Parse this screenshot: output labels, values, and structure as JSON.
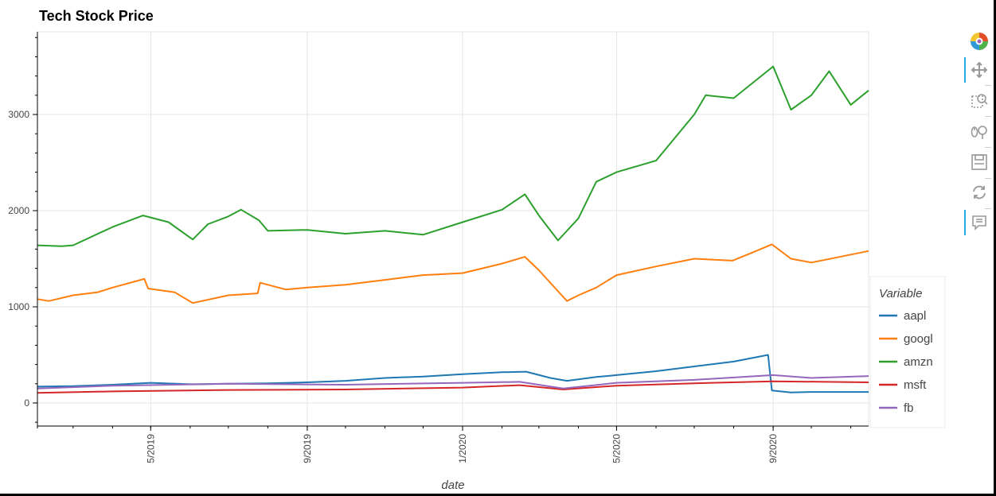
{
  "chart_data": {
    "type": "line",
    "title": "Tech Stock Price",
    "xlabel": "date",
    "ylabel": "",
    "x_range": [
      "2019-02-01",
      "2020-11-15"
    ],
    "ylim": [
      -240,
      3860
    ],
    "x_ticks": [
      {
        "date": "2019-05-01",
        "label": "5/2019"
      },
      {
        "date": "2019-09-01",
        "label": "9/2019"
      },
      {
        "date": "2020-01-01",
        "label": "1/2020"
      },
      {
        "date": "2020-05-01",
        "label": "5/2020"
      },
      {
        "date": "2020-09-01",
        "label": "9/2020"
      }
    ],
    "y_ticks": [
      0,
      1000,
      2000,
      3000
    ],
    "grid": true,
    "legend": {
      "title": "Variable",
      "position": "right"
    },
    "series": [
      {
        "name": "aapl",
        "color": "#1f77b4",
        "x": [
          "2019-02-01",
          "2019-03-01",
          "2019-04-01",
          "2019-05-01",
          "2019-06-01",
          "2019-07-01",
          "2019-08-01",
          "2019-09-01",
          "2019-10-01",
          "2019-11-01",
          "2019-12-01",
          "2020-01-01",
          "2020-02-01",
          "2020-02-20",
          "2020-03-10",
          "2020-03-23",
          "2020-04-15",
          "2020-05-01",
          "2020-06-01",
          "2020-07-01",
          "2020-08-01",
          "2020-08-28",
          "2020-08-31",
          "2020-09-15",
          "2020-10-01",
          "2020-11-15"
        ],
        "y": [
          170,
          175,
          190,
          210,
          195,
          200,
          205,
          215,
          230,
          260,
          275,
          300,
          320,
          325,
          260,
          230,
          270,
          290,
          330,
          380,
          430,
          500,
          130,
          110,
          115,
          115
        ]
      },
      {
        "name": "googl",
        "color": "#ff7f0e",
        "x": [
          "2019-02-01",
          "2019-02-10",
          "2019-03-01",
          "2019-03-20",
          "2019-04-01",
          "2019-04-26",
          "2019-04-29",
          "2019-05-20",
          "2019-06-03",
          "2019-07-01",
          "2019-07-24",
          "2019-07-26",
          "2019-08-15",
          "2019-09-01",
          "2019-10-01",
          "2019-11-01",
          "2019-12-01",
          "2020-01-01",
          "2020-02-01",
          "2020-02-19",
          "2020-03-01",
          "2020-03-23",
          "2020-04-01",
          "2020-04-15",
          "2020-05-01",
          "2020-06-01",
          "2020-07-01",
          "2020-07-31",
          "2020-08-15",
          "2020-08-31",
          "2020-09-15",
          "2020-10-01",
          "2020-11-15"
        ],
        "y": [
          1080,
          1060,
          1120,
          1150,
          1200,
          1290,
          1190,
          1150,
          1040,
          1120,
          1140,
          1250,
          1180,
          1200,
          1230,
          1280,
          1330,
          1350,
          1450,
          1520,
          1380,
          1060,
          1120,
          1200,
          1330,
          1420,
          1500,
          1480,
          1560,
          1650,
          1500,
          1460,
          1580
        ]
      },
      {
        "name": "amzn",
        "color": "#2ca02c",
        "x": [
          "2019-02-01",
          "2019-02-20",
          "2019-03-01",
          "2019-04-01",
          "2019-04-25",
          "2019-05-15",
          "2019-06-03",
          "2019-06-15",
          "2019-07-01",
          "2019-07-11",
          "2019-07-25",
          "2019-08-01",
          "2019-09-01",
          "2019-10-01",
          "2019-11-01",
          "2019-12-01",
          "2020-01-01",
          "2020-02-01",
          "2020-02-19",
          "2020-03-01",
          "2020-03-16",
          "2020-04-01",
          "2020-04-15",
          "2020-05-01",
          "2020-06-01",
          "2020-07-01",
          "2020-07-10",
          "2020-08-01",
          "2020-09-01",
          "2020-09-15",
          "2020-10-01",
          "2020-10-15",
          "2020-11-01",
          "2020-11-15"
        ],
        "y": [
          1640,
          1630,
          1640,
          1830,
          1950,
          1880,
          1700,
          1860,
          1940,
          2010,
          1900,
          1790,
          1800,
          1760,
          1790,
          1750,
          1880,
          2010,
          2170,
          1950,
          1690,
          1920,
          2300,
          2400,
          2520,
          3000,
          3200,
          3170,
          3500,
          3050,
          3200,
          3450,
          3100,
          3250
        ]
      },
      {
        "name": "msft",
        "color": "#d62728",
        "x": [
          "2019-02-01",
          "2019-04-01",
          "2019-07-01",
          "2019-10-01",
          "2020-01-01",
          "2020-02-15",
          "2020-03-20",
          "2020-05-01",
          "2020-07-01",
          "2020-09-01",
          "2020-11-15"
        ],
        "y": [
          105,
          120,
          135,
          140,
          160,
          185,
          140,
          180,
          205,
          225,
          215
        ]
      },
      {
        "name": "fb",
        "color": "#9467bd",
        "x": [
          "2019-02-01",
          "2019-04-01",
          "2019-07-01",
          "2019-10-01",
          "2020-01-01",
          "2020-02-15",
          "2020-03-20",
          "2020-05-01",
          "2020-07-01",
          "2020-09-01",
          "2020-10-01",
          "2020-11-15"
        ],
        "y": [
          150,
          180,
          200,
          190,
          210,
          220,
          150,
          210,
          240,
          290,
          260,
          280
        ]
      }
    ]
  }
}
